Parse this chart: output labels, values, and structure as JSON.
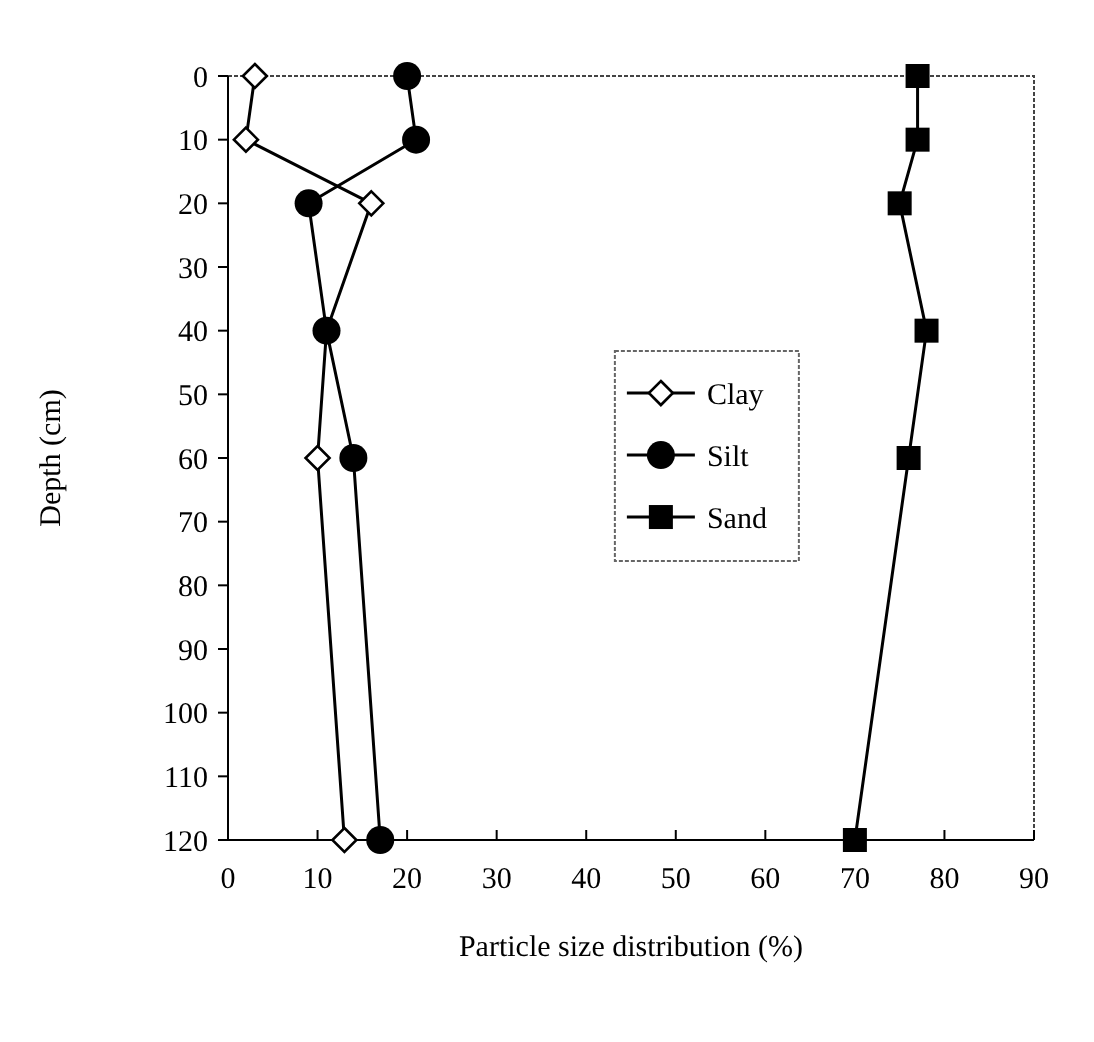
{
  "chart_data": {
    "type": "line",
    "xlabel": "Particle size distribution (%)",
    "ylabel": "Depth (cm)",
    "xlim": [
      0,
      90
    ],
    "xticks": [
      0,
      10,
      20,
      30,
      40,
      50,
      60,
      70,
      80,
      90
    ],
    "ylim": [
      120,
      0
    ],
    "yticks": [
      0,
      10,
      20,
      30,
      40,
      50,
      60,
      70,
      80,
      90,
      100,
      110,
      120
    ],
    "legend": "center",
    "grid": false,
    "series": [
      {
        "name": "Clay",
        "color": "#000000",
        "marker": "diamond",
        "x": [
          3,
          2,
          16,
          11,
          10,
          13
        ],
        "values": [
          0,
          10,
          20,
          40,
          60,
          120
        ]
      },
      {
        "name": "Silt",
        "color": "#000000",
        "marker": "circle",
        "x": [
          20,
          21,
          9,
          11,
          14,
          17
        ],
        "values": [
          0,
          10,
          20,
          40,
          60,
          120
        ]
      },
      {
        "name": "Sand",
        "color": "#000000",
        "marker": "square",
        "x": [
          77,
          77,
          75,
          78,
          76,
          70
        ],
        "values": [
          0,
          10,
          20,
          40,
          60,
          120
        ]
      }
    ]
  }
}
